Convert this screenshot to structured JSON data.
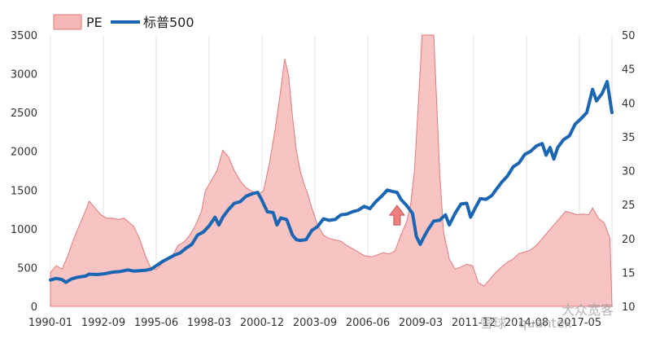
{
  "chart_data": {
    "type": "area+line",
    "legend": {
      "placement": "top-left",
      "items": [
        {
          "name": "PE",
          "color": "#f4b6b6",
          "edge": "#e07a7a",
          "kind": "area"
        },
        {
          "name": "标普500",
          "color": "#1a66b3",
          "kind": "line"
        }
      ]
    },
    "x_tick_labels": [
      "1990-01",
      "1992-09",
      "1995-06",
      "1998-03",
      "2000-12",
      "2003-09",
      "2006-06",
      "2009-03",
      "2011-12",
      "2014-08",
      "2017-05"
    ],
    "y_left": {
      "min": 0,
      "max": 3500,
      "ticks": [
        0,
        500,
        1000,
        1500,
        2000,
        2500,
        3000,
        3500
      ],
      "series": "标普500"
    },
    "y_right": {
      "min": 10,
      "max": 50,
      "ticks": [
        10,
        15,
        20,
        25,
        30,
        35,
        40,
        45,
        50
      ],
      "series": "PE"
    },
    "x_range": [
      1990.0,
      2019.0
    ],
    "grid": "vertical",
    "series": [
      {
        "name": "PE",
        "axis": "right",
        "points": [
          [
            1990.0,
            15.0
          ],
          [
            1990.3,
            16.0
          ],
          [
            1990.6,
            15.5
          ],
          [
            1990.9,
            17.5
          ],
          [
            1991.2,
            20.0
          ],
          [
            1991.5,
            22.0
          ],
          [
            1991.8,
            24.0
          ],
          [
            1992.0,
            25.5
          ],
          [
            1992.3,
            24.5
          ],
          [
            1992.6,
            23.5
          ],
          [
            1992.9,
            23.0
          ],
          [
            1993.2,
            23.0
          ],
          [
            1993.5,
            22.8
          ],
          [
            1993.8,
            23.0
          ],
          [
            1994.0,
            22.5
          ],
          [
            1994.3,
            21.8
          ],
          [
            1994.6,
            20.0
          ],
          [
            1994.9,
            17.5
          ],
          [
            1995.2,
            15.5
          ],
          [
            1995.5,
            15.5
          ],
          [
            1995.8,
            16.5
          ],
          [
            1996.0,
            17.0
          ],
          [
            1996.3,
            17.5
          ],
          [
            1996.6,
            19.0
          ],
          [
            1996.9,
            19.5
          ],
          [
            1997.2,
            20.5
          ],
          [
            1997.5,
            22.0
          ],
          [
            1997.8,
            24.0
          ],
          [
            1998.0,
            27.0
          ],
          [
            1998.3,
            28.5
          ],
          [
            1998.6,
            30.0
          ],
          [
            1998.9,
            33.0
          ],
          [
            1999.2,
            32.0
          ],
          [
            1999.5,
            30.0
          ],
          [
            1999.8,
            28.5
          ],
          [
            2000.1,
            27.5
          ],
          [
            2000.4,
            27.0
          ],
          [
            2000.7,
            26.5
          ],
          [
            2001.0,
            27.0
          ],
          [
            2001.3,
            31.0
          ],
          [
            2001.6,
            36.0
          ],
          [
            2001.9,
            42.0
          ],
          [
            2002.1,
            46.5
          ],
          [
            2002.3,
            44.0
          ],
          [
            2002.5,
            38.0
          ],
          [
            2002.7,
            33.0
          ],
          [
            2002.9,
            30.0
          ],
          [
            2003.1,
            28.0
          ],
          [
            2003.3,
            26.5
          ],
          [
            2003.5,
            24.5
          ],
          [
            2003.8,
            22.0
          ],
          [
            2004.1,
            20.5
          ],
          [
            2004.4,
            20.0
          ],
          [
            2004.7,
            19.8
          ],
          [
            2005.0,
            19.6
          ],
          [
            2005.3,
            19.0
          ],
          [
            2005.6,
            18.5
          ],
          [
            2005.9,
            18.0
          ],
          [
            2006.2,
            17.5
          ],
          [
            2006.6,
            17.3
          ],
          [
            2006.9,
            17.6
          ],
          [
            2007.2,
            17.9
          ],
          [
            2007.5,
            17.7
          ],
          [
            2007.8,
            18.2
          ],
          [
            2008.1,
            20.5
          ],
          [
            2008.4,
            22.5
          ],
          [
            2008.6,
            25.0
          ],
          [
            2008.8,
            30.0
          ],
          [
            2009.0,
            40.0
          ],
          [
            2009.2,
            50.0
          ],
          [
            2009.5,
            50.0
          ],
          [
            2009.8,
            50.0
          ],
          [
            2010.1,
            30.0
          ],
          [
            2010.3,
            21.0
          ],
          [
            2010.6,
            17.0
          ],
          [
            2010.9,
            15.5
          ],
          [
            2011.2,
            15.8
          ],
          [
            2011.5,
            16.2
          ],
          [
            2011.8,
            16.0
          ],
          [
            2012.1,
            13.5
          ],
          [
            2012.4,
            13.0
          ],
          [
            2012.7,
            14.0
          ],
          [
            2013.0,
            15.0
          ],
          [
            2013.3,
            15.8
          ],
          [
            2013.6,
            16.5
          ],
          [
            2013.9,
            17.0
          ],
          [
            2014.2,
            17.8
          ],
          [
            2014.5,
            18.0
          ],
          [
            2014.8,
            18.3
          ],
          [
            2015.1,
            19.0
          ],
          [
            2015.4,
            20.0
          ],
          [
            2015.7,
            21.0
          ],
          [
            2016.0,
            22.0
          ],
          [
            2016.3,
            23.0
          ],
          [
            2016.6,
            24.0
          ],
          [
            2016.9,
            23.8
          ],
          [
            2017.2,
            23.5
          ],
          [
            2017.5,
            23.6
          ],
          [
            2017.8,
            23.5
          ],
          [
            2018.0,
            24.5
          ],
          [
            2018.3,
            23.0
          ],
          [
            2018.6,
            22.3
          ],
          [
            2018.9,
            20.0
          ],
          [
            2019.0,
            10.0
          ]
        ]
      },
      {
        "name": "标普500",
        "axis": "left",
        "points": [
          [
            1990.0,
            340
          ],
          [
            1990.3,
            360
          ],
          [
            1990.6,
            345
          ],
          [
            1990.8,
            310
          ],
          [
            1991.1,
            355
          ],
          [
            1991.4,
            375
          ],
          [
            1991.8,
            390
          ],
          [
            1992.0,
            415
          ],
          [
            1992.4,
            410
          ],
          [
            1992.8,
            420
          ],
          [
            1993.2,
            440
          ],
          [
            1993.6,
            450
          ],
          [
            1994.0,
            470
          ],
          [
            1994.3,
            455
          ],
          [
            1994.6,
            460
          ],
          [
            1994.9,
            465
          ],
          [
            1995.2,
            480
          ],
          [
            1995.5,
            530
          ],
          [
            1995.8,
            580
          ],
          [
            1996.1,
            620
          ],
          [
            1996.4,
            660
          ],
          [
            1996.7,
            690
          ],
          [
            1997.0,
            750
          ],
          [
            1997.3,
            800
          ],
          [
            1997.6,
            920
          ],
          [
            1997.9,
            960
          ],
          [
            1998.2,
            1040
          ],
          [
            1998.5,
            1150
          ],
          [
            1998.7,
            1050
          ],
          [
            1998.9,
            1150
          ],
          [
            1999.2,
            1250
          ],
          [
            1999.5,
            1330
          ],
          [
            1999.8,
            1350
          ],
          [
            2000.1,
            1420
          ],
          [
            2000.4,
            1450
          ],
          [
            2000.7,
            1470
          ],
          [
            2000.9,
            1380
          ],
          [
            2001.2,
            1220
          ],
          [
            2001.5,
            1210
          ],
          [
            2001.7,
            1050
          ],
          [
            2001.9,
            1140
          ],
          [
            2002.2,
            1120
          ],
          [
            2002.5,
            920
          ],
          [
            2002.7,
            860
          ],
          [
            2002.9,
            850
          ],
          [
            2003.2,
            860
          ],
          [
            2003.5,
            980
          ],
          [
            2003.8,
            1030
          ],
          [
            2004.1,
            1130
          ],
          [
            2004.4,
            1110
          ],
          [
            2004.7,
            1120
          ],
          [
            2005.0,
            1180
          ],
          [
            2005.3,
            1190
          ],
          [
            2005.6,
            1220
          ],
          [
            2005.9,
            1240
          ],
          [
            2006.2,
            1290
          ],
          [
            2006.5,
            1260
          ],
          [
            2006.8,
            1350
          ],
          [
            2007.1,
            1420
          ],
          [
            2007.4,
            1500
          ],
          [
            2007.7,
            1480
          ],
          [
            2007.9,
            1470
          ],
          [
            2008.1,
            1380
          ],
          [
            2008.4,
            1300
          ],
          [
            2008.7,
            1200
          ],
          [
            2008.9,
            900
          ],
          [
            2009.1,
            800
          ],
          [
            2009.3,
            900
          ],
          [
            2009.5,
            990
          ],
          [
            2009.8,
            1100
          ],
          [
            2010.1,
            1110
          ],
          [
            2010.4,
            1180
          ],
          [
            2010.6,
            1050
          ],
          [
            2010.9,
            1200
          ],
          [
            2011.2,
            1320
          ],
          [
            2011.5,
            1330
          ],
          [
            2011.7,
            1150
          ],
          [
            2011.9,
            1250
          ],
          [
            2012.2,
            1390
          ],
          [
            2012.5,
            1380
          ],
          [
            2012.8,
            1430
          ],
          [
            2013.0,
            1500
          ],
          [
            2013.3,
            1600
          ],
          [
            2013.6,
            1680
          ],
          [
            2013.9,
            1800
          ],
          [
            2014.2,
            1850
          ],
          [
            2014.5,
            1960
          ],
          [
            2014.8,
            2000
          ],
          [
            2015.1,
            2070
          ],
          [
            2015.4,
            2100
          ],
          [
            2015.6,
            1950
          ],
          [
            2015.8,
            2050
          ],
          [
            2016.0,
            1900
          ],
          [
            2016.2,
            2050
          ],
          [
            2016.5,
            2150
          ],
          [
            2016.8,
            2200
          ],
          [
            2017.1,
            2350
          ],
          [
            2017.4,
            2420
          ],
          [
            2017.7,
            2500
          ],
          [
            2018.0,
            2800
          ],
          [
            2018.2,
            2650
          ],
          [
            2018.5,
            2750
          ],
          [
            2018.75,
            2900
          ],
          [
            2019.0,
            2500
          ]
        ]
      }
    ],
    "annotations": [
      {
        "type": "arrow-up",
        "x": 2007.9,
        "y": 1050,
        "color": "#f08080",
        "edge": "#c85050"
      }
    ]
  },
  "watermark": {
    "text": "雪球 · quantek",
    "prefix": "2011-12",
    "tail": "2014-08 · 2017-05",
    "brand": "大众宽客"
  }
}
